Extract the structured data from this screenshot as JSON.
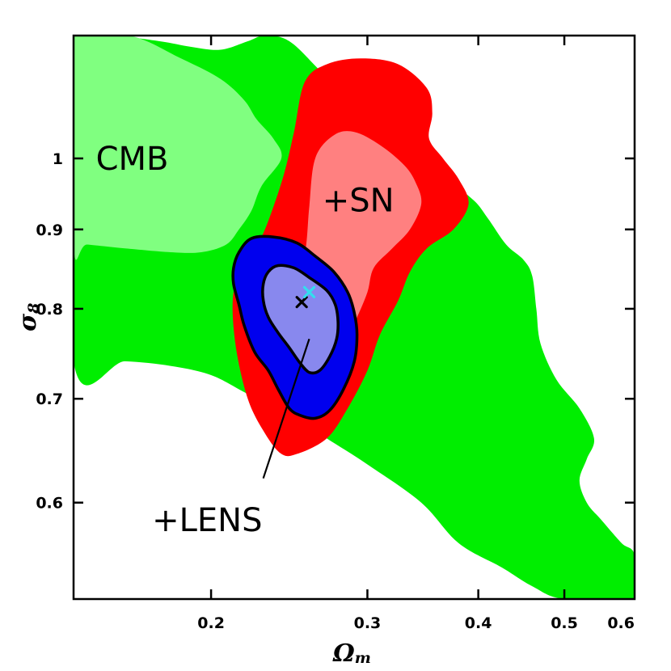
{
  "chart_data": {
    "type": "contour",
    "xlabel": "Ω",
    "xlabel_sub": "m",
    "ylabel": "σ",
    "ylabel_sub": "8",
    "x_scale": "log",
    "y_scale": "log",
    "xlim": [
      0.14,
      0.6
    ],
    "ylim": [
      0.52,
      1.2
    ],
    "x_ticks": [
      {
        "value": 0.2,
        "label": "0.2"
      },
      {
        "value": 0.3,
        "label": "0.3"
      },
      {
        "value": 0.4,
        "label": "0.4"
      },
      {
        "value": 0.5,
        "label": "0.5"
      },
      {
        "value": 0.6,
        "label": "0.6"
      }
    ],
    "y_ticks": [
      {
        "value": 0.6,
        "label": "0.6"
      },
      {
        "value": 0.7,
        "label": "0.7"
      },
      {
        "value": 0.8,
        "label": "0.8"
      },
      {
        "value": 0.9,
        "label": "0.9"
      },
      {
        "value": 1.0,
        "label": "1"
      }
    ],
    "regions": [
      {
        "name": "cmb-95",
        "color": "#00ee00",
        "stroke": "none",
        "points": [
          [
            0.14,
            1.2
          ],
          [
            0.155,
            1.2
          ],
          [
            0.175,
            1.19
          ],
          [
            0.19,
            1.18
          ],
          [
            0.205,
            1.175
          ],
          [
            0.22,
            1.19
          ],
          [
            0.23,
            1.2
          ],
          [
            0.245,
            1.19
          ],
          [
            0.265,
            1.14
          ],
          [
            0.295,
            1.07
          ],
          [
            0.32,
            1.01
          ],
          [
            0.335,
            0.985
          ],
          [
            0.37,
            0.965
          ],
          [
            0.395,
            0.94
          ],
          [
            0.41,
            0.915
          ],
          [
            0.43,
            0.88
          ],
          [
            0.45,
            0.86
          ],
          [
            0.46,
            0.84
          ],
          [
            0.465,
            0.8
          ],
          [
            0.47,
            0.76
          ],
          [
            0.49,
            0.72
          ],
          [
            0.52,
            0.69
          ],
          [
            0.54,
            0.66
          ],
          [
            0.53,
            0.64
          ],
          [
            0.52,
            0.62
          ],
          [
            0.53,
            0.6
          ],
          [
            0.55,
            0.585
          ],
          [
            0.58,
            0.565
          ],
          [
            0.6,
            0.555
          ],
          [
            0.6,
            0.52
          ],
          [
            0.5,
            0.52
          ],
          [
            0.46,
            0.53
          ],
          [
            0.425,
            0.545
          ],
          [
            0.38,
            0.565
          ],
          [
            0.345,
            0.6
          ],
          [
            0.3,
            0.635
          ],
          [
            0.27,
            0.66
          ],
          [
            0.25,
            0.68
          ],
          [
            0.22,
            0.705
          ],
          [
            0.2,
            0.725
          ],
          [
            0.18,
            0.735
          ],
          [
            0.16,
            0.74
          ],
          [
            0.14,
            0.74
          ]
        ]
      },
      {
        "name": "cmb-68",
        "color": "#80ff80",
        "stroke": "none",
        "points": [
          [
            0.14,
            1.2
          ],
          [
            0.162,
            1.2
          ],
          [
            0.185,
            1.16
          ],
          [
            0.205,
            1.125
          ],
          [
            0.218,
            1.09
          ],
          [
            0.225,
            1.06
          ],
          [
            0.235,
            1.03
          ],
          [
            0.24,
            1.0
          ],
          [
            0.228,
            0.96
          ],
          [
            0.222,
            0.925
          ],
          [
            0.215,
            0.9
          ],
          [
            0.208,
            0.88
          ],
          [
            0.195,
            0.87
          ],
          [
            0.18,
            0.87
          ],
          [
            0.16,
            0.875
          ],
          [
            0.145,
            0.88
          ],
          [
            0.14,
            0.88
          ]
        ]
      },
      {
        "name": "sn-95",
        "color": "#ff0000",
        "stroke": "none",
        "points": [
          [
            0.255,
            1.12
          ],
          [
            0.27,
            1.15
          ],
          [
            0.295,
            1.16
          ],
          [
            0.325,
            1.15
          ],
          [
            0.35,
            1.11
          ],
          [
            0.355,
            1.07
          ],
          [
            0.352,
            1.03
          ],
          [
            0.365,
            1.0
          ],
          [
            0.38,
            0.97
          ],
          [
            0.39,
            0.935
          ],
          [
            0.375,
            0.9
          ],
          [
            0.35,
            0.875
          ],
          [
            0.335,
            0.845
          ],
          [
            0.325,
            0.81
          ],
          [
            0.31,
            0.77
          ],
          [
            0.3,
            0.73
          ],
          [
            0.285,
            0.69
          ],
          [
            0.27,
            0.66
          ],
          [
            0.25,
            0.645
          ],
          [
            0.24,
            0.645
          ],
          [
            0.23,
            0.665
          ],
          [
            0.22,
            0.7
          ],
          [
            0.213,
            0.76
          ],
          [
            0.212,
            0.82
          ],
          [
            0.22,
            0.86
          ],
          [
            0.228,
            0.89
          ],
          [
            0.235,
            0.93
          ],
          [
            0.242,
            0.98
          ],
          [
            0.248,
            1.04
          ]
        ]
      },
      {
        "name": "sn-68",
        "color": "#ff8080",
        "stroke": "none",
        "points": [
          [
            0.262,
            1.0
          ],
          [
            0.275,
            1.035
          ],
          [
            0.29,
            1.04
          ],
          [
            0.31,
            1.02
          ],
          [
            0.33,
            0.99
          ],
          [
            0.34,
            0.965
          ],
          [
            0.345,
            0.935
          ],
          [
            0.335,
            0.9
          ],
          [
            0.32,
            0.875
          ],
          [
            0.305,
            0.85
          ],
          [
            0.3,
            0.82
          ],
          [
            0.292,
            0.79
          ],
          [
            0.282,
            0.76
          ],
          [
            0.27,
            0.72
          ],
          [
            0.258,
            0.71
          ],
          [
            0.25,
            0.73
          ],
          [
            0.248,
            0.78
          ],
          [
            0.252,
            0.83
          ],
          [
            0.256,
            0.88
          ],
          [
            0.258,
            0.93
          ]
        ]
      },
      {
        "name": "lens-95",
        "color": "#0000ee",
        "stroke": "#000000",
        "points": [
          [
            0.215,
            0.87
          ],
          [
            0.222,
            0.888
          ],
          [
            0.235,
            0.89
          ],
          [
            0.25,
            0.882
          ],
          [
            0.262,
            0.865
          ],
          [
            0.275,
            0.845
          ],
          [
            0.285,
            0.82
          ],
          [
            0.29,
            0.795
          ],
          [
            0.292,
            0.77
          ],
          [
            0.29,
            0.74
          ],
          [
            0.282,
            0.71
          ],
          [
            0.272,
            0.688
          ],
          [
            0.262,
            0.68
          ],
          [
            0.252,
            0.683
          ],
          [
            0.245,
            0.69
          ],
          [
            0.238,
            0.71
          ],
          [
            0.232,
            0.73
          ],
          [
            0.224,
            0.75
          ],
          [
            0.218,
            0.78
          ],
          [
            0.215,
            0.805
          ],
          [
            0.212,
            0.83
          ],
          [
            0.212,
            0.85
          ]
        ]
      },
      {
        "name": "lens-68",
        "color": "#8888ee",
        "stroke": "#000000",
        "points": [
          [
            0.232,
            0.845
          ],
          [
            0.238,
            0.853
          ],
          [
            0.248,
            0.85
          ],
          [
            0.258,
            0.838
          ],
          [
            0.27,
            0.822
          ],
          [
            0.276,
            0.805
          ],
          [
            0.278,
            0.785
          ],
          [
            0.277,
            0.765
          ],
          [
            0.272,
            0.745
          ],
          [
            0.265,
            0.73
          ],
          [
            0.258,
            0.728
          ],
          [
            0.252,
            0.738
          ],
          [
            0.245,
            0.755
          ],
          [
            0.238,
            0.772
          ],
          [
            0.232,
            0.79
          ],
          [
            0.229,
            0.81
          ],
          [
            0.229,
            0.83
          ]
        ]
      }
    ],
    "markers": [
      {
        "name": "best-fit-marker-black",
        "x": 0.253,
        "y": 0.808,
        "color": "#000000",
        "symbol": "x"
      },
      {
        "name": "best-fit-marker-cyan",
        "x": 0.258,
        "y": 0.82,
        "color": "#33ddee",
        "symbol": "x"
      }
    ],
    "annotations": [
      {
        "name": "label-cmb",
        "text": "CMB",
        "x": 0.163,
        "y": 1.0
      },
      {
        "name": "label-sn",
        "text": "+SN",
        "x": 0.293,
        "y": 0.94
      },
      {
        "name": "label-lens",
        "text": "+LENS",
        "x": 0.198,
        "y": 0.585
      }
    ],
    "pointer_line": {
      "from": [
        0.229,
        0.622
      ],
      "to": [
        0.258,
        0.765
      ]
    }
  }
}
